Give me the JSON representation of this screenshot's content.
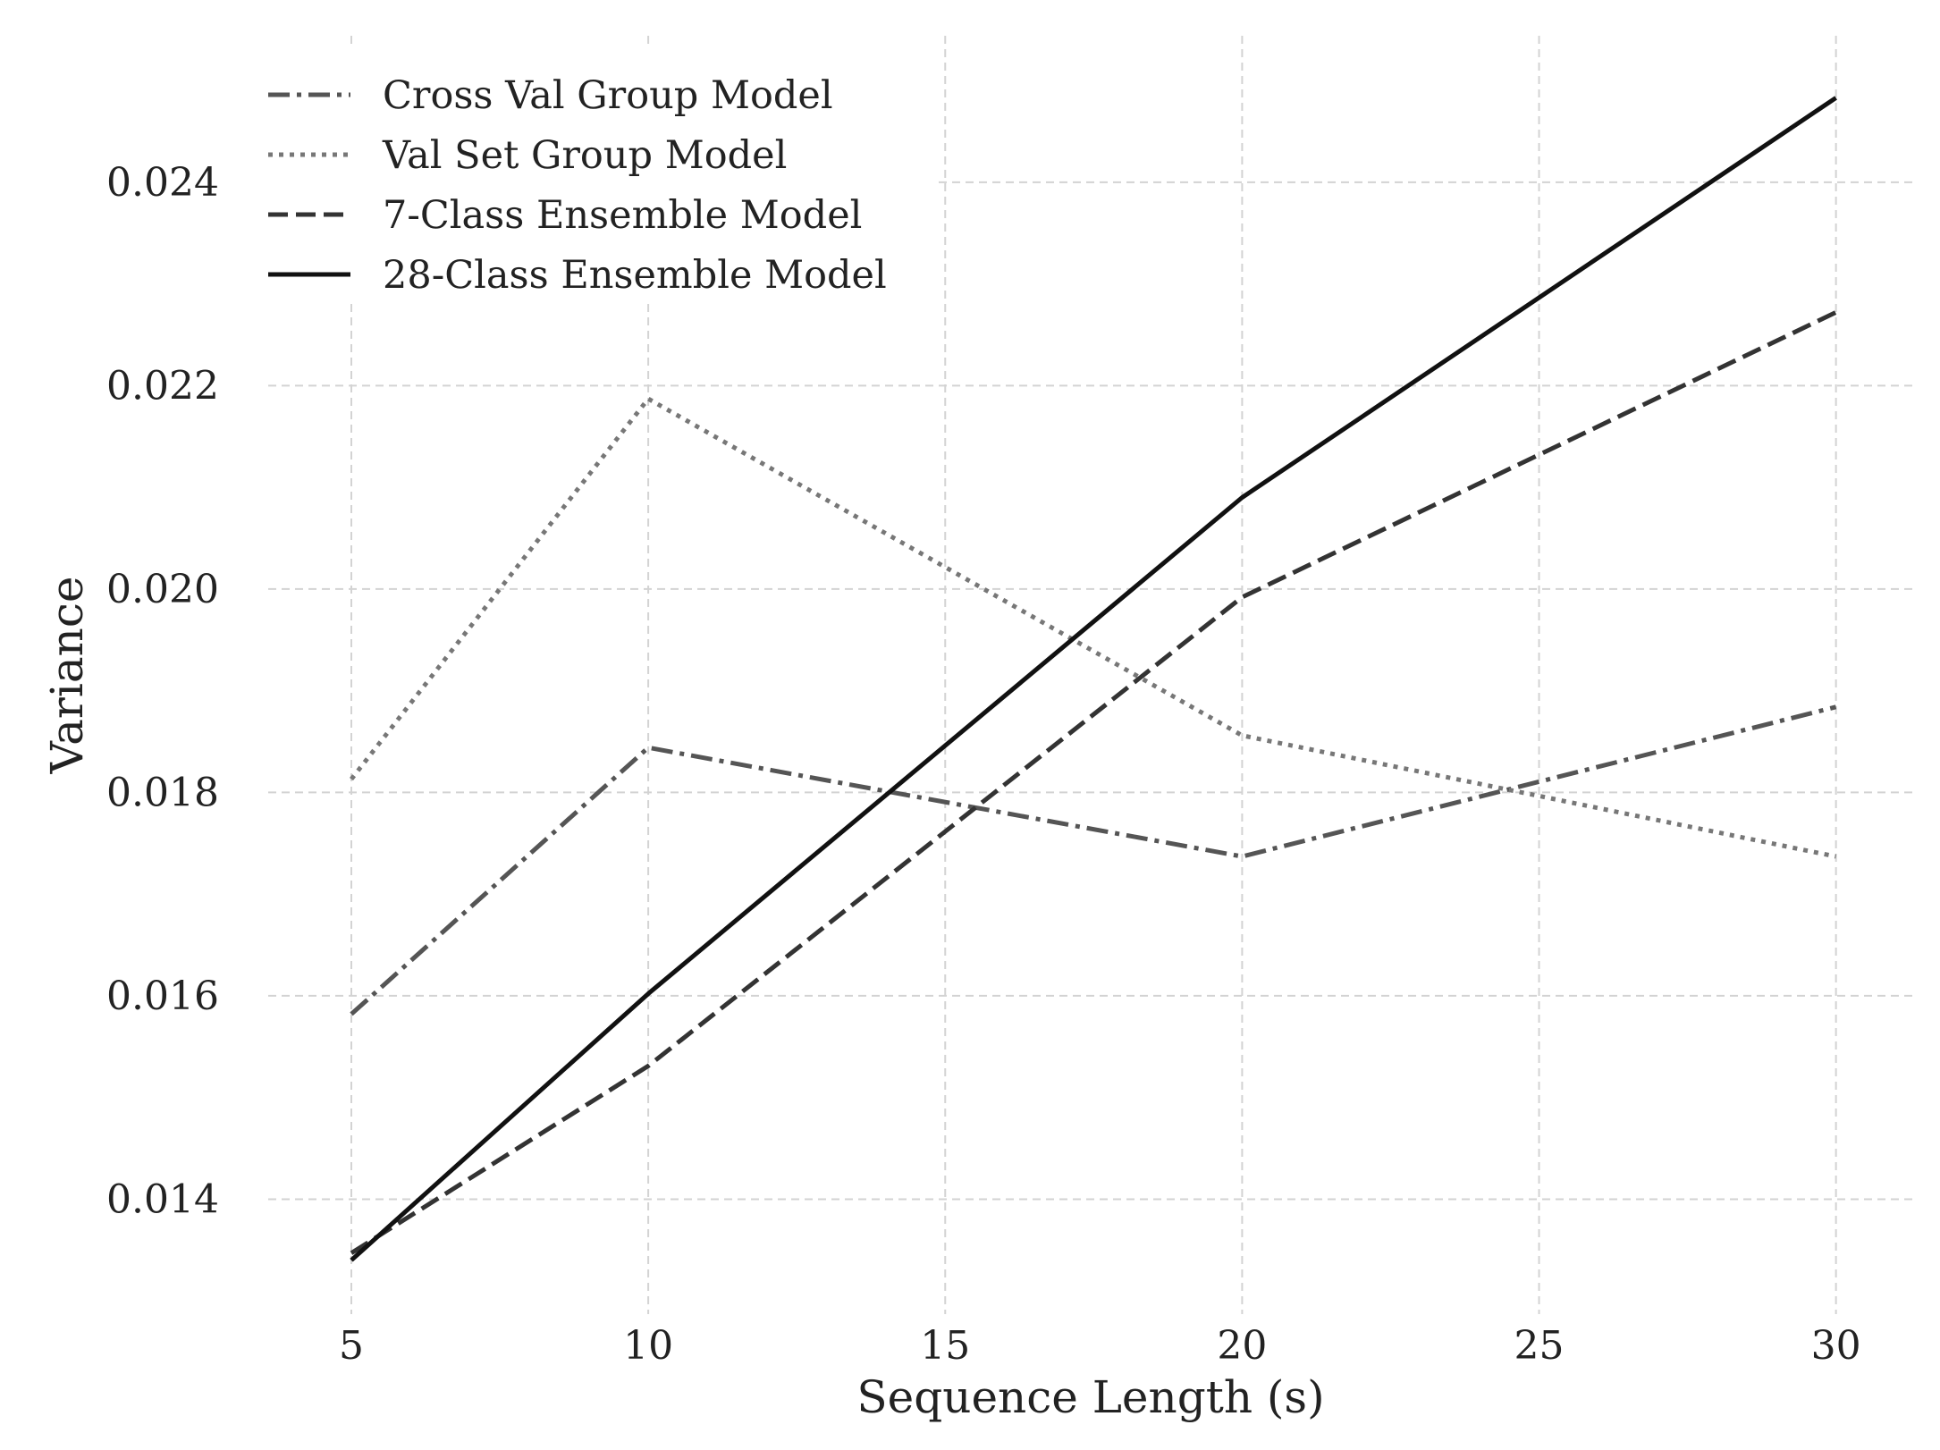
{
  "chart_data": {
    "type": "line",
    "title": "",
    "xlabel": "Sequence Length (s)",
    "ylabel": "Variance",
    "x": [
      5,
      10,
      20,
      30
    ],
    "xticks": [
      5,
      10,
      15,
      20,
      25,
      30
    ],
    "xtick_labels": [
      "5",
      "10",
      "15",
      "20",
      "25",
      "30"
    ],
    "yticks": [
      0.014,
      0.016,
      0.018,
      0.02,
      0.022,
      0.024
    ],
    "ytick_labels": [
      "0.014",
      "0.016",
      "0.018",
      "0.020",
      "0.022",
      "0.024"
    ],
    "xlim": [
      3.6,
      31.3
    ],
    "ylim": [
      0.01287,
      0.02544
    ],
    "grid": true,
    "legend_position": "top-left",
    "series": [
      {
        "name": "Cross Val Group Model",
        "values": [
          0.01582,
          0.01844,
          0.01737,
          0.01884
        ],
        "color": "#555555",
        "style": "dashdot"
      },
      {
        "name": "Val Set Group Model",
        "values": [
          0.01813,
          0.02187,
          0.01856,
          0.01737
        ],
        "color": "#777777",
        "style": "dotted"
      },
      {
        "name": "7-Class Ensemble Model",
        "values": [
          0.01347,
          0.01531,
          0.01992,
          0.02272
        ],
        "color": "#333333",
        "style": "dashed"
      },
      {
        "name": "28-Class Ensemble Model",
        "values": [
          0.0134,
          0.01602,
          0.0209,
          0.02483
        ],
        "color": "#111111",
        "style": "solid"
      }
    ]
  }
}
